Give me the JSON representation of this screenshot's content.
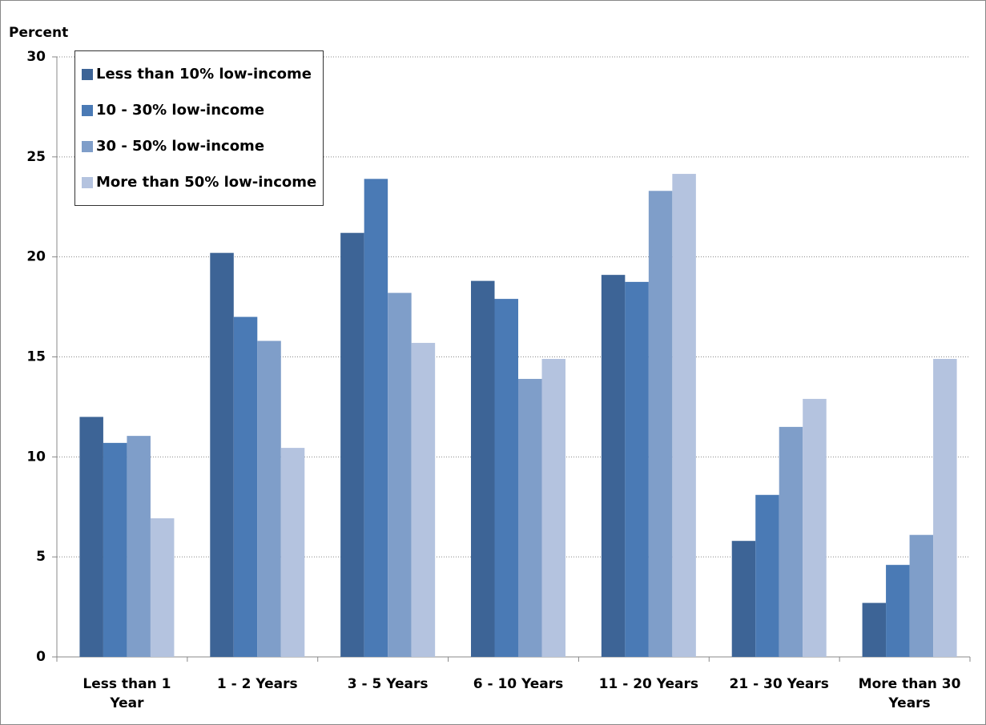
{
  "chart_data": {
    "type": "bar",
    "y_label": "Percent",
    "categories": [
      "Less than 1 Year",
      "1 - 2 Years",
      "3 - 5 Years",
      "6 - 10 Years",
      "11 - 20 Years",
      "21 - 30 Years",
      "More than 30 Years"
    ],
    "series": [
      {
        "name": "Less than 10% low-income",
        "color": "#3d6496",
        "values": [
          12.0,
          20.2,
          21.2,
          18.8,
          19.1,
          5.8,
          2.7
        ]
      },
      {
        "name": "10 - 30% low-income",
        "color": "#4a7ab5",
        "values": [
          10.7,
          17.0,
          23.9,
          17.9,
          18.75,
          8.1,
          4.6
        ]
      },
      {
        "name": "30 - 50% low-income",
        "color": "#7f9ec9",
        "values": [
          11.05,
          15.8,
          18.2,
          13.9,
          23.3,
          11.5,
          6.1
        ]
      },
      {
        "name": "More than 50% low-income",
        "color": "#b4c3df",
        "values": [
          6.93,
          10.45,
          15.7,
          14.9,
          24.15,
          12.9,
          14.9
        ]
      }
    ],
    "ylim": [
      0,
      30
    ],
    "yticks": [
      0,
      5,
      10,
      15,
      20,
      25,
      30
    ],
    "grid": true,
    "legend": "top-left"
  }
}
